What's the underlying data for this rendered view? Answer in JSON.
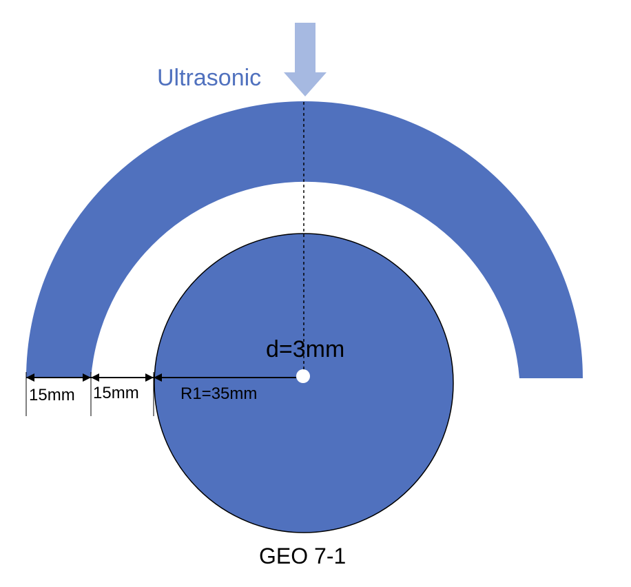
{
  "title": "GEO 7-1",
  "source_label": "Ultrasonic",
  "hole_label": "d=3mm",
  "dimensions": {
    "outer_ring_width": "15mm",
    "gap_width": "15mm",
    "inner_radius": "R1=35mm"
  },
  "colors": {
    "shape_fill": "#5071BE",
    "arrow_fill": "#A6B9E1",
    "label_blue": "#5071BE",
    "stroke": "#000000",
    "background": "#FFFFFF"
  }
}
